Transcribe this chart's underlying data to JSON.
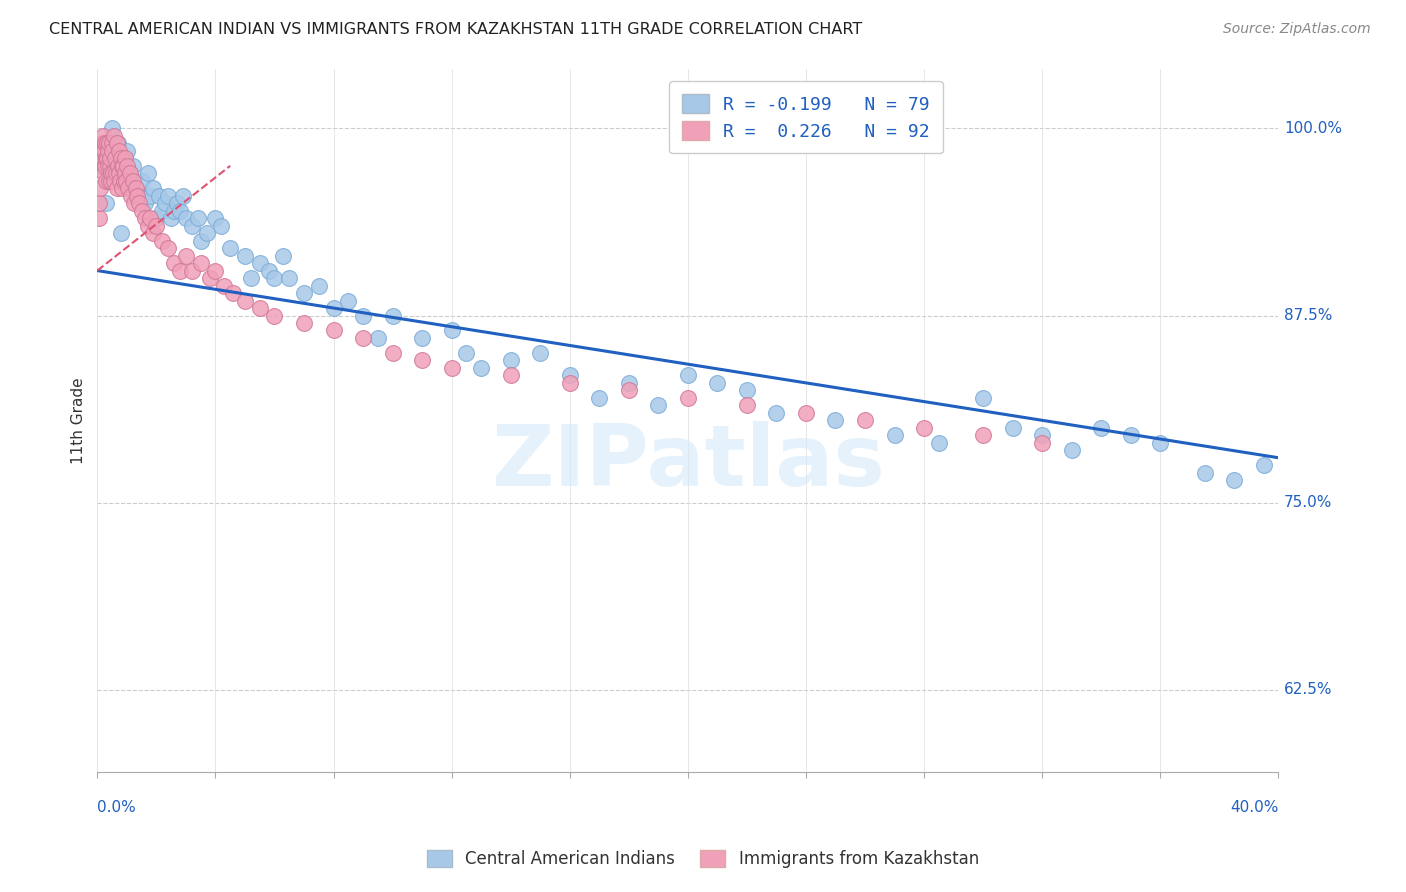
{
  "title": "CENTRAL AMERICAN INDIAN VS IMMIGRANTS FROM KAZAKHSTAN 11TH GRADE CORRELATION CHART",
  "source": "Source: ZipAtlas.com",
  "ylabel": "11th Grade",
  "yticks": [
    62.5,
    75.0,
    87.5,
    100.0
  ],
  "ytick_labels": [
    "62.5%",
    "75.0%",
    "87.5%",
    "100.0%"
  ],
  "xlim": [
    0.0,
    40.0
  ],
  "ylim": [
    57.0,
    104.0
  ],
  "watermark": "ZIPatlas",
  "color_blue": "#a8c8e8",
  "color_pink": "#f0a0b8",
  "color_trend_blue": "#2060c0",
  "color_trend_pink": "#e05070",
  "legend_text_color": "#2060c0",
  "title_color": "#222222",
  "blue_trend_x": [
    0.0,
    40.0
  ],
  "blue_trend_y": [
    90.5,
    78.0
  ],
  "pink_trend_x": [
    0.0,
    4.5
  ],
  "pink_trend_y": [
    90.5,
    97.5
  ],
  "blue_points_x": [
    0.3,
    0.5,
    0.7,
    0.8,
    1.0,
    1.1,
    1.2,
    1.3,
    1.4,
    1.5,
    1.6,
    1.7,
    1.8,
    1.9,
    2.0,
    2.1,
    2.2,
    2.3,
    2.4,
    2.5,
    2.6,
    2.7,
    2.8,
    2.9,
    3.0,
    3.2,
    3.4,
    3.5,
    3.7,
    4.0,
    4.2,
    4.5,
    5.0,
    5.2,
    5.5,
    5.8,
    6.0,
    6.3,
    6.5,
    7.0,
    7.5,
    8.0,
    8.5,
    9.0,
    9.5,
    10.0,
    11.0,
    12.0,
    12.5,
    13.0,
    14.0,
    15.0,
    16.0,
    17.0,
    18.0,
    19.0,
    20.0,
    21.0,
    22.0,
    23.0,
    25.0,
    27.0,
    28.5,
    30.0,
    31.0,
    32.0,
    33.0,
    34.0,
    35.0,
    36.0,
    37.5,
    38.5,
    39.5
  ],
  "blue_points_y": [
    95.0,
    100.0,
    99.0,
    93.0,
    98.5,
    97.0,
    97.5,
    96.0,
    95.5,
    96.5,
    95.0,
    97.0,
    95.5,
    96.0,
    94.0,
    95.5,
    94.5,
    95.0,
    95.5,
    94.0,
    94.5,
    95.0,
    94.5,
    95.5,
    94.0,
    93.5,
    94.0,
    92.5,
    93.0,
    94.0,
    93.5,
    92.0,
    91.5,
    90.0,
    91.0,
    90.5,
    90.0,
    91.5,
    90.0,
    89.0,
    89.5,
    88.0,
    88.5,
    87.5,
    86.0,
    87.5,
    86.0,
    86.5,
    85.0,
    84.0,
    84.5,
    85.0,
    83.5,
    82.0,
    83.0,
    81.5,
    83.5,
    83.0,
    82.5,
    81.0,
    80.5,
    79.5,
    79.0,
    82.0,
    80.0,
    79.5,
    78.5,
    80.0,
    79.5,
    79.0,
    77.0,
    76.5,
    77.5
  ],
  "pink_points_x": [
    0.05,
    0.07,
    0.09,
    0.1,
    0.12,
    0.14,
    0.15,
    0.17,
    0.18,
    0.2,
    0.22,
    0.24,
    0.25,
    0.27,
    0.28,
    0.3,
    0.32,
    0.33,
    0.35,
    0.37,
    0.38,
    0.4,
    0.42,
    0.43,
    0.45,
    0.47,
    0.48,
    0.5,
    0.52,
    0.55,
    0.57,
    0.6,
    0.62,
    0.65,
    0.67,
    0.7,
    0.72,
    0.75,
    0.78,
    0.8,
    0.83,
    0.85,
    0.88,
    0.9,
    0.93,
    0.95,
    0.98,
    1.0,
    1.05,
    1.1,
    1.15,
    1.2,
    1.25,
    1.3,
    1.35,
    1.4,
    1.5,
    1.6,
    1.7,
    1.8,
    1.9,
    2.0,
    2.2,
    2.4,
    2.6,
    2.8,
    3.0,
    3.2,
    3.5,
    3.8,
    4.0,
    4.3,
    4.6,
    5.0,
    5.5,
    6.0,
    7.0,
    8.0,
    9.0,
    10.0,
    11.0,
    12.0,
    14.0,
    16.0,
    18.0,
    20.0,
    22.0,
    24.0,
    26.0,
    28.0,
    30.0,
    32.0
  ],
  "pink_points_y": [
    94.0,
    95.0,
    97.5,
    96.0,
    98.0,
    97.5,
    99.0,
    98.5,
    98.0,
    99.5,
    97.0,
    98.5,
    99.0,
    97.5,
    98.0,
    96.5,
    98.0,
    99.0,
    97.5,
    98.5,
    96.5,
    99.0,
    97.5,
    98.0,
    96.5,
    97.0,
    99.0,
    98.5,
    97.0,
    99.5,
    96.5,
    98.0,
    97.0,
    99.0,
    96.0,
    97.5,
    98.5,
    97.0,
    96.5,
    98.0,
    97.5,
    96.0,
    97.5,
    96.5,
    98.0,
    97.0,
    96.5,
    97.5,
    96.0,
    97.0,
    95.5,
    96.5,
    95.0,
    96.0,
    95.5,
    95.0,
    94.5,
    94.0,
    93.5,
    94.0,
    93.0,
    93.5,
    92.5,
    92.0,
    91.0,
    90.5,
    91.5,
    90.5,
    91.0,
    90.0,
    90.5,
    89.5,
    89.0,
    88.5,
    88.0,
    87.5,
    87.0,
    86.5,
    86.0,
    85.0,
    84.5,
    84.0,
    83.5,
    83.0,
    82.5,
    82.0,
    81.5,
    81.0,
    80.5,
    80.0,
    79.5,
    79.0
  ]
}
